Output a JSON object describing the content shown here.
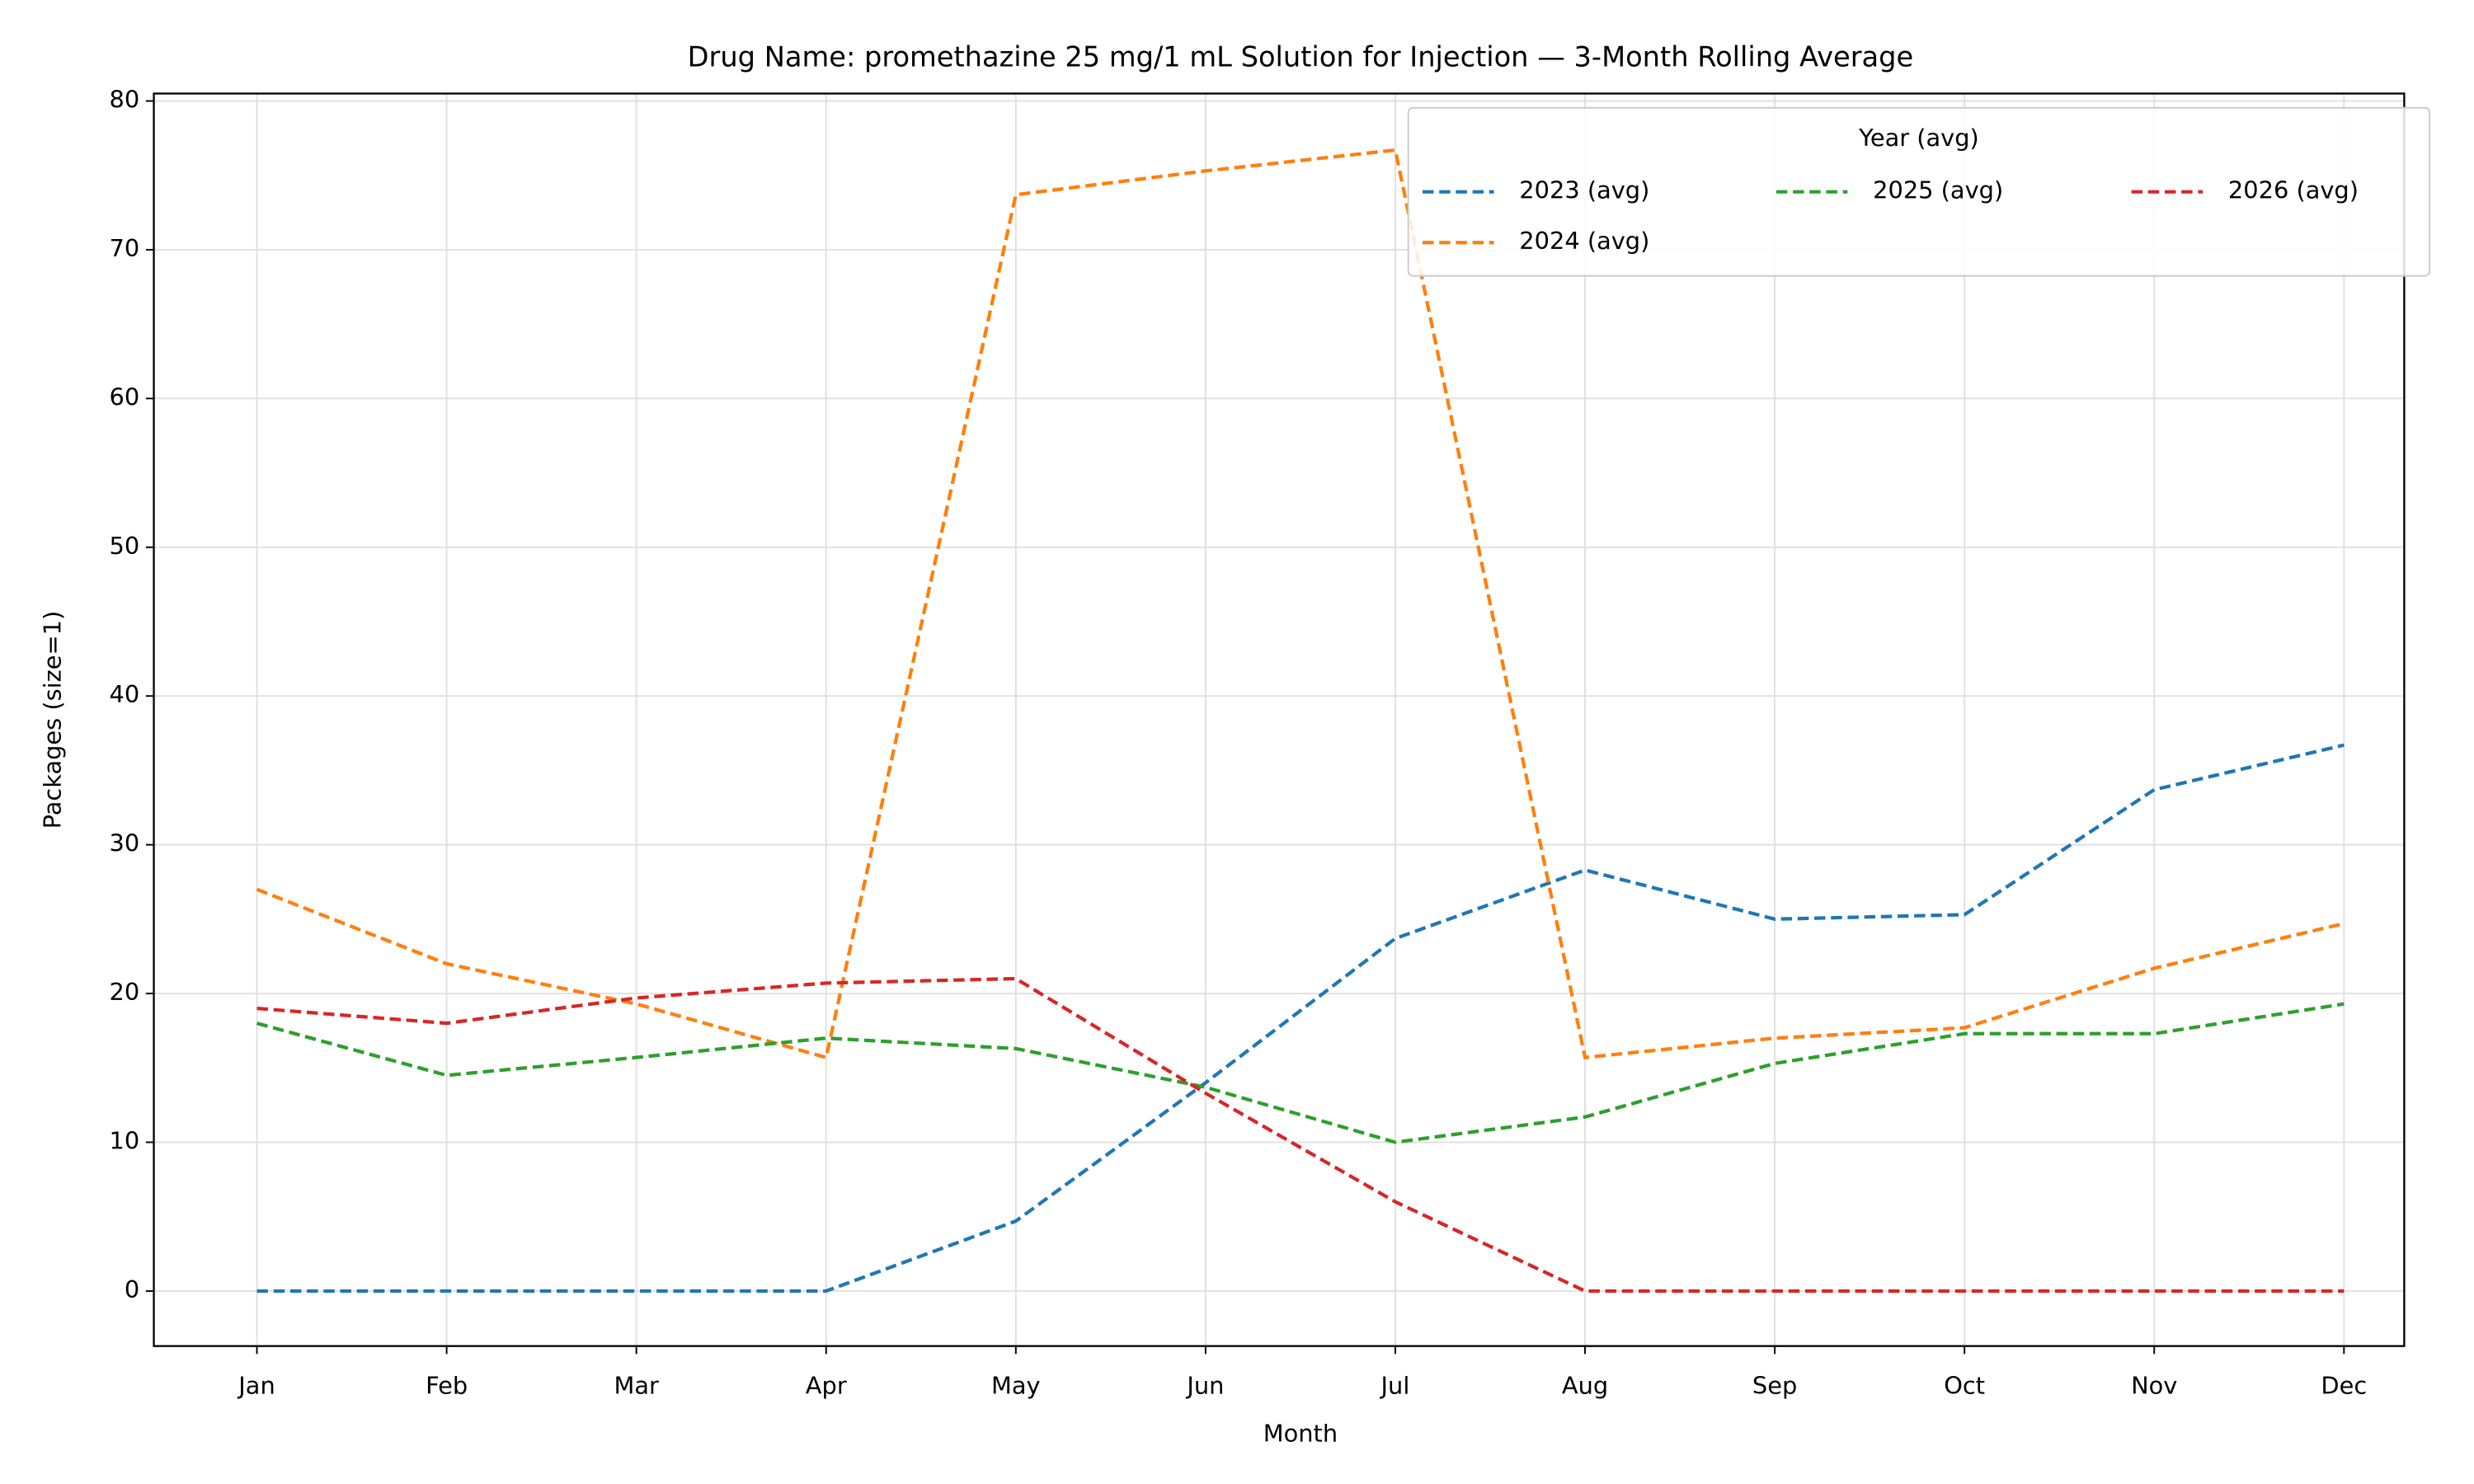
{
  "chart_data": {
    "type": "line",
    "title": "Drug Name: promethazine 25 mg/1 mL Solution for Injection — 3-Month Rolling Average",
    "x_label": "Month",
    "y_label": "Packages (size=1)",
    "categories": [
      "Jan",
      "Feb",
      "Mar",
      "Apr",
      "May",
      "Jun",
      "Jul",
      "Aug",
      "Sep",
      "Oct",
      "Nov",
      "Dec"
    ],
    "series": [
      {
        "name": "2023 (avg)",
        "color": "#1f77b4",
        "values": [
          0,
          0,
          0,
          0,
          4.7,
          14.0,
          23.7,
          28.3,
          25.0,
          25.3,
          33.7,
          36.7
        ]
      },
      {
        "name": "2024 (avg)",
        "color": "#ff7f0e",
        "values": [
          27.0,
          22.0,
          19.3,
          15.7,
          73.7,
          75.3,
          76.7,
          15.7,
          17.0,
          17.7,
          21.7,
          24.7
        ]
      },
      {
        "name": "2025 (avg)",
        "color": "#2ca02c",
        "values": [
          18.0,
          14.5,
          15.7,
          17.0,
          16.3,
          13.7,
          10.0,
          11.7,
          15.3,
          17.3,
          17.3,
          19.3
        ]
      },
      {
        "name": "2026 (avg)",
        "color": "#d62728",
        "values": [
          19.0,
          18.0,
          19.7,
          20.7,
          21.0,
          13.3,
          6.0,
          0,
          0,
          0,
          0,
          0
        ]
      }
    ],
    "ylim": [
      -3.7,
      80.5
    ],
    "yticks": [
      0,
      10,
      20,
      30,
      40,
      50,
      60,
      70,
      80
    ],
    "grid": true,
    "legend_title": "Year (avg)",
    "legend_position": "upper right",
    "line_style": "dashed"
  }
}
